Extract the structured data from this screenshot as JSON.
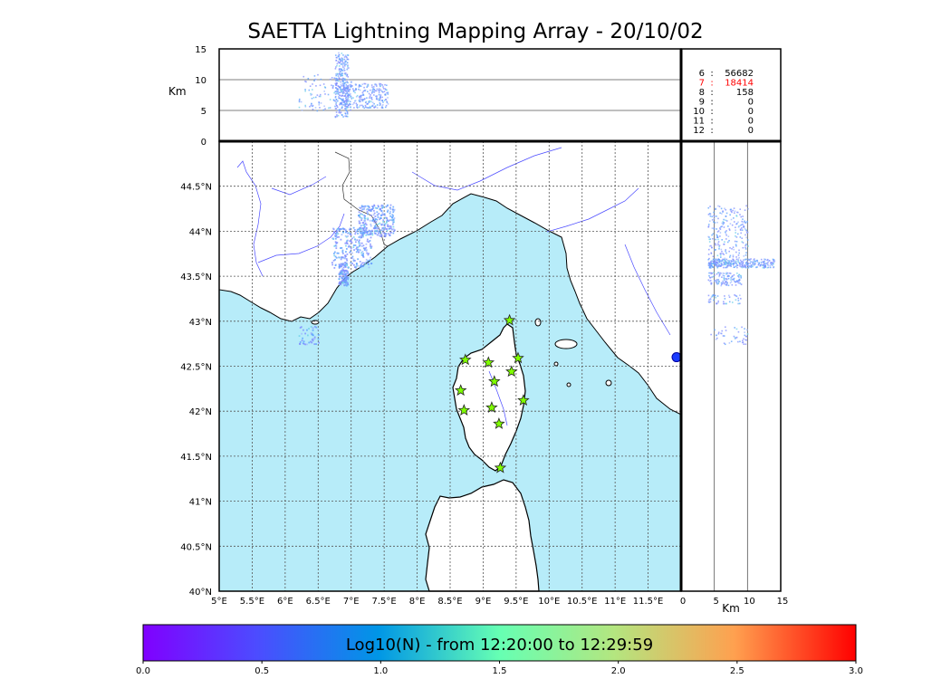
{
  "title": "SAETTA Lightning Mapping Array - 20/10/02",
  "colors": {
    "sea": "#b7ecf9",
    "land": "#ffffff",
    "rivers": "#4a4aff",
    "grid": "#555555",
    "station_fill": "#7fff00",
    "highlight_row": "#ff0000"
  },
  "chart_data": [
    {
      "id": "altitude_longitude",
      "type": "scatter",
      "xlabel": "",
      "ylabel": "Km",
      "xlim": [
        5,
        12
      ],
      "ylim": [
        0,
        15
      ],
      "yticks": [
        "0",
        "5",
        "10",
        "15"
      ],
      "grid_y": [
        5,
        10
      ],
      "clusters": [
        {
          "lon_range": [
            6.2,
            7.0
          ],
          "alt_range": [
            5,
            11
          ],
          "density": "medium"
        },
        {
          "lon_range": [
            6.75,
            6.95
          ],
          "alt_range": [
            4,
            14.5
          ],
          "density": "high"
        },
        {
          "lon_range": [
            6.85,
            7.55
          ],
          "alt_range": [
            5.5,
            9.5
          ],
          "density": "high"
        }
      ]
    },
    {
      "id": "stats_table",
      "type": "table",
      "rows": [
        {
          "k": "6",
          "v": "56682",
          "highlight": false
        },
        {
          "k": "7",
          "v": "18414",
          "highlight": true
        },
        {
          "k": "8",
          "v": "158",
          "highlight": false
        },
        {
          "k": "9",
          "v": "0",
          "highlight": false
        },
        {
          "k": "10",
          "v": "0",
          "highlight": false
        },
        {
          "k": "11",
          "v": "0",
          "highlight": false
        },
        {
          "k": "12",
          "v": "0",
          "highlight": false
        }
      ]
    },
    {
      "id": "plan_view_map",
      "type": "scatter",
      "xlim": [
        5,
        12
      ],
      "ylim": [
        40,
        45
      ],
      "xticks": [
        "5°E",
        "5.5°E",
        "6°E",
        "6.5°E",
        "7°E",
        "7.5°E",
        "8°E",
        "8.5°E",
        "9°E",
        "9.5°E",
        "10°E",
        "10.5°E",
        "11°E",
        "11.5°E"
      ],
      "yticks": [
        "40°N",
        "40.5°N",
        "41°N",
        "41.5°N",
        "42°N",
        "42.5°N",
        "43°N",
        "43.5°N",
        "44°N",
        "44.5°N"
      ],
      "stations": [
        {
          "lon": 9.4,
          "lat": 43.01
        },
        {
          "lon": 8.73,
          "lat": 42.57
        },
        {
          "lon": 9.08,
          "lat": 42.54
        },
        {
          "lon": 9.53,
          "lat": 42.59
        },
        {
          "lon": 9.43,
          "lat": 42.44
        },
        {
          "lon": 9.17,
          "lat": 42.33
        },
        {
          "lon": 8.66,
          "lat": 42.23
        },
        {
          "lon": 9.61,
          "lat": 42.12
        },
        {
          "lon": 9.13,
          "lat": 42.04
        },
        {
          "lon": 8.71,
          "lat": 42.01
        },
        {
          "lon": 9.24,
          "lat": 41.86
        },
        {
          "lon": 9.26,
          "lat": 41.37
        }
      ],
      "clusters": [
        {
          "lon_range": [
            6.7,
            7.3
          ],
          "lat_range": [
            43.6,
            44.05
          ],
          "density": "high"
        },
        {
          "lon_range": [
            7.1,
            7.65
          ],
          "lat_range": [
            43.95,
            44.3
          ],
          "density": "high"
        },
        {
          "lon_range": [
            6.8,
            6.95
          ],
          "lat_range": [
            43.4,
            43.65
          ],
          "density": "medium"
        },
        {
          "lon_range": [
            6.2,
            6.5
          ],
          "lat_range": [
            42.75,
            42.95
          ],
          "density": "low"
        }
      ],
      "marker": {
        "lon": 12.0,
        "lat": 42.6
      }
    },
    {
      "id": "latitude_altitude",
      "type": "scatter",
      "xlabel": "Km",
      "xlim": [
        0,
        15
      ],
      "xticks": [
        "0",
        "5",
        "10",
        "15"
      ],
      "grid_x": [
        5,
        10
      ],
      "ylim": [
        40,
        45
      ],
      "clusters": [
        {
          "alt_range": [
            4,
            10
          ],
          "lat_range": [
            43.6,
            44.3
          ],
          "density": "high"
        },
        {
          "alt_range": [
            4,
            14
          ],
          "lat_range": [
            43.6,
            43.7
          ],
          "density": "high"
        },
        {
          "alt_range": [
            4,
            9
          ],
          "lat_range": [
            43.4,
            43.55
          ],
          "density": "medium"
        },
        {
          "alt_range": [
            4,
            9
          ],
          "lat_range": [
            43.2,
            43.3
          ],
          "density": "low"
        },
        {
          "alt_range": [
            4,
            10
          ],
          "lat_range": [
            42.75,
            42.95
          ],
          "density": "low"
        }
      ]
    },
    {
      "id": "colorbar",
      "type": "heatmap",
      "label": "Log10(N) - from 12:20:00 to 12:29:59",
      "range": [
        0.0,
        3.0
      ],
      "ticks": [
        "0.0",
        "0.5",
        "1.0",
        "1.5",
        "2.0",
        "2.5",
        "3.0"
      ],
      "colormap": "rainbow"
    }
  ]
}
